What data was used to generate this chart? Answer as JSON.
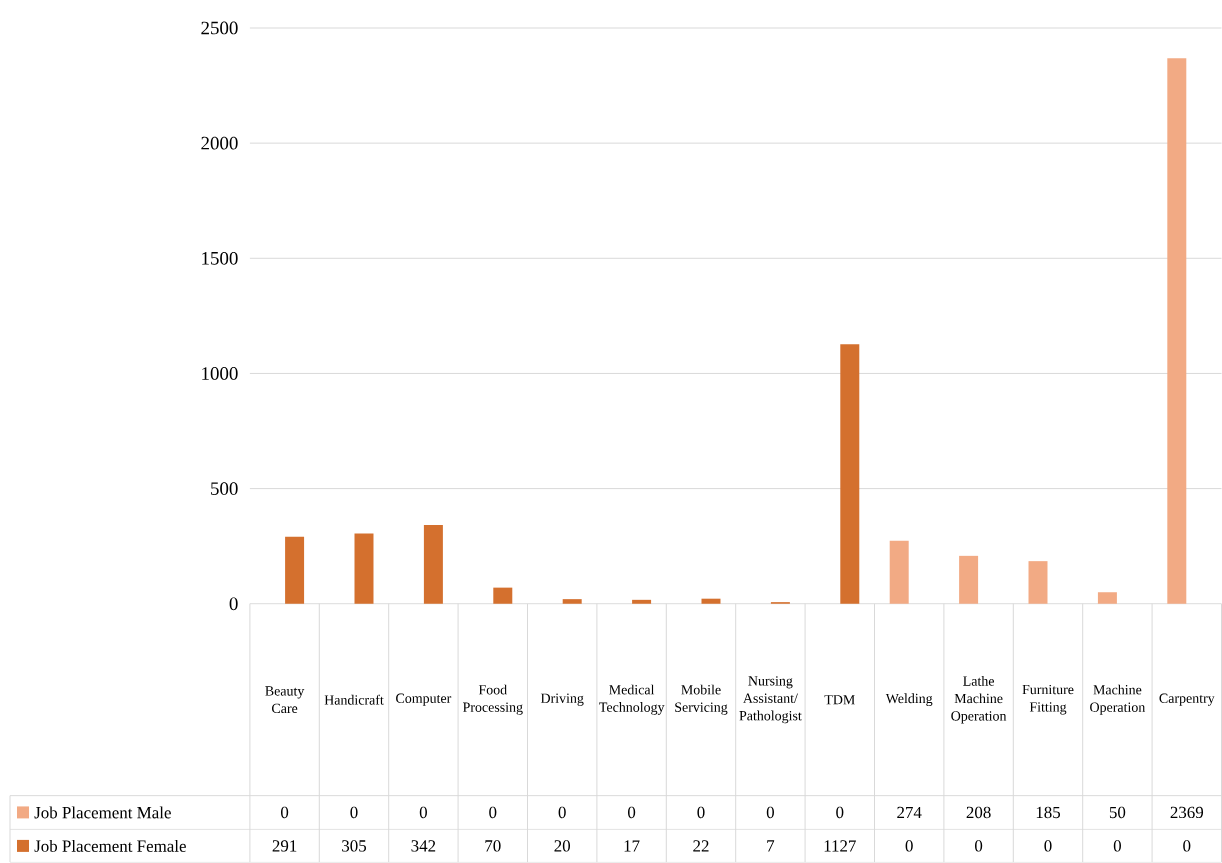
{
  "chart_data": {
    "type": "bar",
    "categories": [
      "Beauty Care",
      "Handicraft",
      "Computer",
      "Food Processing",
      "Driving",
      "Medical Technology",
      "Mobile Servicing",
      "Nursing Assistant/Pathologist",
      "TDM",
      "Welding",
      "Lathe Machine Operation",
      "Furniture Fitting",
      "Machine Operation",
      "Carpentry"
    ],
    "series": [
      {
        "name": "Job Placement Male",
        "color": "#F2AA84",
        "values": [
          0,
          0,
          0,
          0,
          0,
          0,
          0,
          0,
          0,
          274,
          208,
          185,
          50,
          2369
        ]
      },
      {
        "name": "Job Placement Female",
        "color": "#D4702E",
        "values": [
          291,
          305,
          342,
          70,
          20,
          17,
          22,
          7,
          1127,
          0,
          0,
          0,
          0,
          0
        ]
      }
    ],
    "ylim": [
      0,
      2500
    ],
    "yticks": [
      0,
      500,
      1000,
      1500,
      2000,
      2500
    ],
    "grid": "y",
    "legend": "bottom",
    "data_labels": true
  }
}
